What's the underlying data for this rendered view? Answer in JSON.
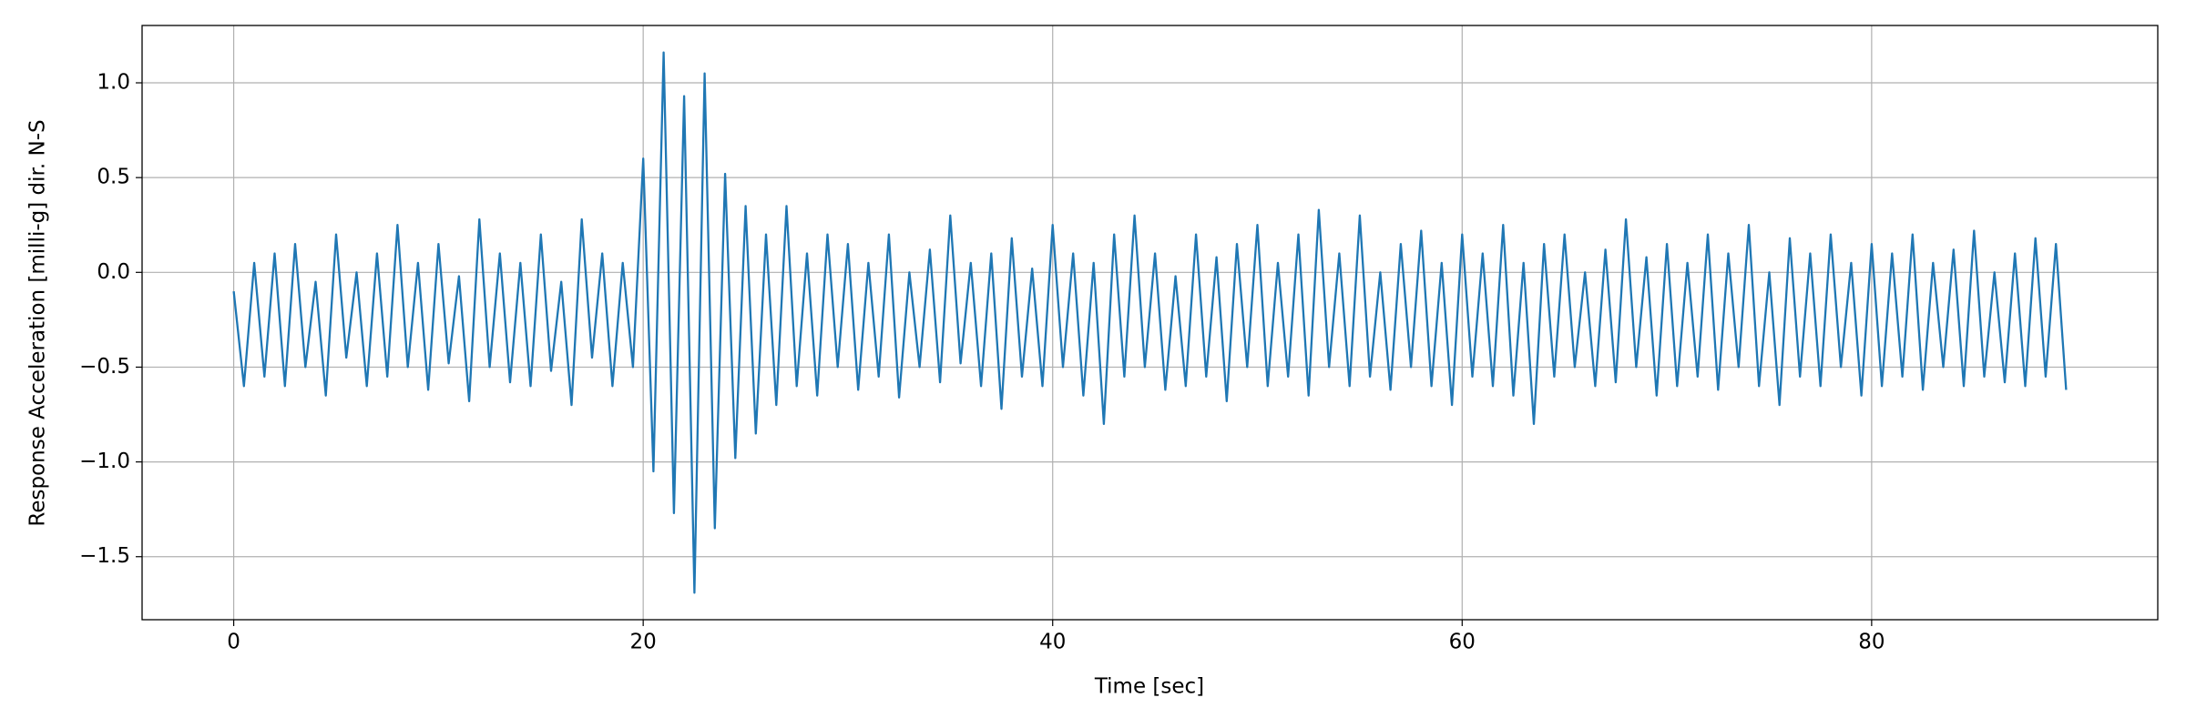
{
  "chart_data": {
    "type": "line",
    "xlabel": "Time [sec]",
    "ylabel": "Response Acceleration [milli-g] dir. N-S",
    "xlim": [
      -4.475,
      93.975
    ],
    "xticks": [
      0,
      20,
      40,
      60,
      80
    ],
    "ylim": [
      -1.8325,
      1.3025
    ],
    "yticks": [
      {
        "value": -1.5,
        "label": "−1.5"
      },
      {
        "value": -1.0,
        "label": "−1.0"
      },
      {
        "value": -0.5,
        "label": "−0.5"
      },
      {
        "value": 0.0,
        "label": "0.0"
      },
      0.5,
      {
        "value": 1.0,
        "label": "1.0"
      }
    ],
    "grid": true,
    "x": [
      0,
      0.5,
      1,
      1.5,
      2,
      2.5,
      3,
      3.5,
      4,
      4.5,
      5,
      5.5,
      6,
      6.5,
      7,
      7.5,
      8,
      8.5,
      9,
      9.5,
      10,
      10.5,
      11,
      11.5,
      12,
      12.5,
      13,
      13.5,
      14,
      14.5,
      15,
      15.5,
      16,
      16.5,
      17,
      17.5,
      18,
      18.5,
      19,
      19.5,
      20,
      20.5,
      21,
      21.5,
      22,
      22.5,
      23,
      23.5,
      24,
      24.5,
      25,
      25.5,
      26,
      26.5,
      27,
      27.5,
      28,
      28.5,
      29,
      29.5,
      30,
      30.5,
      31,
      31.5,
      32,
      32.5,
      33,
      33.5,
      34,
      34.5,
      35,
      35.5,
      36,
      36.5,
      37,
      37.5,
      38,
      38.5,
      39,
      39.5,
      40,
      40.5,
      41,
      41.5,
      42,
      42.5,
      43,
      43.5,
      44,
      44.5,
      45,
      45.5,
      46,
      46.5,
      47,
      47.5,
      48,
      48.5,
      49,
      49.5,
      50,
      50.5,
      51,
      51.5,
      52,
      52.5,
      53,
      53.5,
      54,
      54.5,
      55,
      55.5,
      56,
      56.5,
      57,
      57.5,
      58,
      58.5,
      59,
      59.5,
      60,
      60.5,
      61,
      61.5,
      62,
      62.5,
      63,
      63.5,
      64,
      64.5,
      65,
      65.5,
      66,
      66.5,
      67,
      67.5,
      68,
      68.5,
      69,
      69.5,
      70,
      70.5,
      71,
      71.5,
      72,
      72.5,
      73,
      73.5,
      74,
      74.5,
      75,
      75.5,
      76,
      76.5,
      77,
      77.5,
      78,
      78.5,
      79,
      79.5,
      80,
      80.5,
      81,
      81.5,
      82,
      82.5,
      83,
      83.5,
      84,
      84.5,
      85,
      85.5,
      86,
      86.5,
      87,
      87.5,
      88,
      88.5,
      89,
      89.5
    ],
    "series": [
      {
        "color": "#1f77b4",
        "values": [
          -0.1,
          -0.6,
          0.05,
          -0.55,
          0.1,
          -0.6,
          0.15,
          -0.5,
          -0.05,
          -0.65,
          0.2,
          -0.45,
          0.0,
          -0.6,
          0.1,
          -0.55,
          0.25,
          -0.5,
          0.05,
          -0.62,
          0.15,
          -0.48,
          -0.02,
          -0.68,
          0.28,
          -0.5,
          0.1,
          -0.58,
          0.05,
          -0.6,
          0.2,
          -0.52,
          -0.05,
          -0.7,
          0.28,
          -0.45,
          0.1,
          -0.6,
          0.05,
          -0.5,
          0.6,
          -1.05,
          1.16,
          -1.27,
          0.93,
          -1.69,
          1.05,
          -1.35,
          0.52,
          -0.98,
          0.35,
          -0.85,
          0.2,
          -0.7,
          0.35,
          -0.6,
          0.1,
          -0.65,
          0.2,
          -0.5,
          0.15,
          -0.62,
          0.05,
          -0.55,
          0.2,
          -0.66,
          0.0,
          -0.5,
          0.12,
          -0.58,
          0.3,
          -0.48,
          0.05,
          -0.6,
          0.1,
          -0.72,
          0.18,
          -0.55,
          0.02,
          -0.6,
          0.25,
          -0.5,
          0.1,
          -0.65,
          0.05,
          -0.8,
          0.2,
          -0.55,
          0.3,
          -0.5,
          0.1,
          -0.62,
          -0.02,
          -0.6,
          0.2,
          -0.55,
          0.08,
          -0.68,
          0.15,
          -0.5,
          0.25,
          -0.6,
          0.05,
          -0.55,
          0.2,
          -0.65,
          0.33,
          -0.5,
          0.1,
          -0.6,
          0.3,
          -0.55,
          0.0,
          -0.62,
          0.15,
          -0.5,
          0.22,
          -0.6,
          0.05,
          -0.7,
          0.2,
          -0.55,
          0.1,
          -0.6,
          0.25,
          -0.65,
          0.05,
          -0.8,
          0.15,
          -0.55,
          0.2,
          -0.5,
          0.0,
          -0.6,
          0.12,
          -0.58,
          0.28,
          -0.5,
          0.08,
          -0.65,
          0.15,
          -0.6,
          0.05,
          -0.55,
          0.2,
          -0.62,
          0.1,
          -0.5,
          0.25,
          -0.6,
          0.0,
          -0.7,
          0.18,
          -0.55,
          0.1,
          -0.6,
          0.2,
          -0.5,
          0.05,
          -0.65,
          0.15,
          -0.6,
          0.1,
          -0.55,
          0.2,
          -0.62,
          0.05,
          -0.5,
          0.12,
          -0.6,
          0.22,
          -0.55,
          0.0,
          -0.58,
          0.1,
          -0.6,
          0.18,
          -0.55,
          0.15,
          -0.62
        ]
      }
    ]
  }
}
